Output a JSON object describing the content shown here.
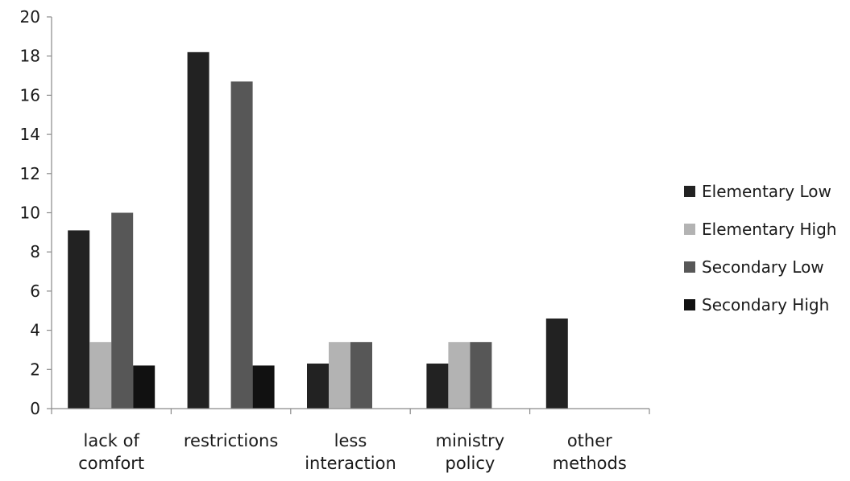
{
  "chart_data": {
    "type": "bar",
    "title": "",
    "xlabel": "",
    "ylabel": "",
    "ylim": [
      0,
      20
    ],
    "ytick_step": 2,
    "yticks": [
      "0",
      "2",
      "4",
      "6",
      "8",
      "10",
      "12",
      "14",
      "16",
      "18",
      "20"
    ],
    "grid": false,
    "legend_position": "right",
    "categories": [
      [
        "lack of",
        "comfort"
      ],
      [
        "restrictions"
      ],
      [
        "less",
        "interaction"
      ],
      [
        "ministry",
        "policy"
      ],
      [
        "other",
        "methods"
      ]
    ],
    "series": [
      {
        "name": "Elementary Low",
        "color": "#222222",
        "values": [
          9.1,
          18.2,
          2.3,
          2.3,
          4.6
        ]
      },
      {
        "name": "Elementary High",
        "color": "#b3b3b3",
        "values": [
          3.4,
          0,
          3.4,
          3.4,
          0
        ]
      },
      {
        "name": "Secondary Low",
        "color": "#575757",
        "values": [
          10.0,
          16.7,
          3.4,
          3.4,
          0
        ]
      },
      {
        "name": "Secondary High",
        "color": "#111111",
        "values": [
          2.2,
          2.2,
          0,
          0,
          0
        ]
      }
    ]
  }
}
